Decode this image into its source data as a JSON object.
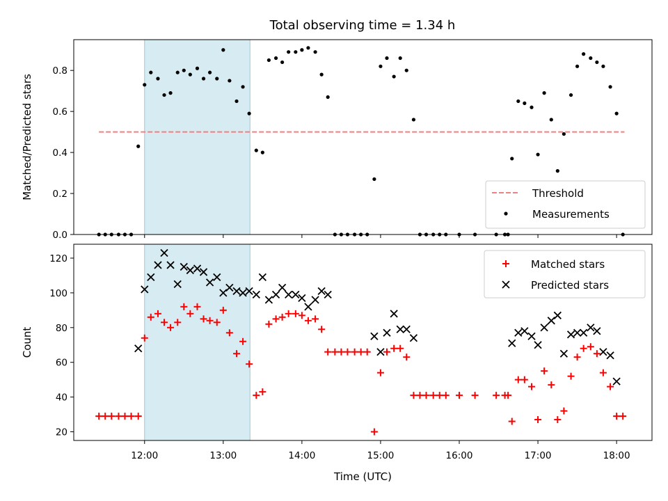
{
  "chart_data": {
    "title": "Total observing time = 1.34 h",
    "xlabel": "Time (UTC)",
    "x_unit": "hours UTC",
    "xlim": [
      11.1,
      18.45
    ],
    "x_ticks": [
      {
        "value": 12,
        "label": "12:00"
      },
      {
        "value": 13,
        "label": "13:00"
      },
      {
        "value": 14,
        "label": "14:00"
      },
      {
        "value": 15,
        "label": "15:00"
      },
      {
        "value": 16,
        "label": "16:00"
      },
      {
        "value": 17,
        "label": "17:00"
      },
      {
        "value": 18,
        "label": "18:00"
      }
    ],
    "shaded_interval": {
      "x0": 12.0,
      "x1": 13.34,
      "color": "#add8e6"
    },
    "panels": [
      {
        "type": "scatter",
        "ylabel": "Matched/Predicted stars",
        "ylim": [
          0,
          0.95
        ],
        "y_ticks": [
          0.0,
          0.2,
          0.4,
          0.6,
          0.8
        ],
        "y_tick_labels": [
          "0.0",
          "0.2",
          "0.4",
          "0.6",
          "0.8"
        ],
        "legend": {
          "placement": "lower-right"
        },
        "series": [
          {
            "name": "Threshold",
            "kind": "line",
            "style": "dashed",
            "color": "#f08080",
            "x": [
              11.42,
              18.1
            ],
            "y": [
              0.5,
              0.5
            ]
          },
          {
            "name": "Measurements",
            "kind": "dot",
            "color": "#000000",
            "x": [
              11.42,
              11.5,
              11.58,
              11.67,
              11.75,
              11.83,
              11.92,
              12.0,
              12.08,
              12.17,
              12.25,
              12.33,
              12.42,
              12.5,
              12.58,
              12.67,
              12.75,
              12.83,
              12.92,
              13.0,
              13.08,
              13.17,
              13.25,
              13.33,
              13.42,
              13.5,
              13.58,
              13.67,
              13.75,
              13.83,
              13.92,
              14.0,
              14.08,
              14.17,
              14.25,
              14.33,
              14.42,
              14.5,
              14.58,
              14.67,
              14.75,
              14.83,
              14.92,
              15.0,
              15.08,
              15.17,
              15.25,
              15.33,
              15.42,
              15.5,
              15.58,
              15.67,
              15.75,
              15.83,
              16.0,
              16.2,
              16.47,
              16.58,
              16.62,
              16.67,
              16.75,
              16.83,
              16.92,
              17.0,
              17.08,
              17.17,
              17.25,
              17.33,
              17.42,
              17.5,
              17.58,
              17.67,
              17.75,
              17.83,
              17.92,
              18.0,
              18.08
            ],
            "y": [
              0,
              0,
              0,
              0,
              0,
              0,
              0.43,
              0.73,
              0.79,
              0.76,
              0.68,
              0.69,
              0.79,
              0.8,
              0.78,
              0.81,
              0.76,
              0.79,
              0.76,
              0.9,
              0.75,
              0.65,
              0.72,
              0.59,
              0.41,
              0.4,
              0.85,
              0.86,
              0.84,
              0.89,
              0.89,
              0.9,
              0.91,
              0.89,
              0.78,
              0.67,
              0,
              0,
              0,
              0,
              0,
              0,
              0.27,
              0.82,
              0.86,
              0.77,
              0.86,
              0.8,
              0.56,
              0,
              0,
              0,
              0,
              0,
              0,
              0,
              0,
              0,
              0,
              0.37,
              0.65,
              0.64,
              0.62,
              0.39,
              0.69,
              0.56,
              0.31,
              0.49,
              0.68,
              0.82,
              0.88,
              0.86,
              0.84,
              0.82,
              0.72,
              0.59,
              0
            ]
          }
        ]
      },
      {
        "type": "scatter",
        "ylabel": "Count",
        "ylim": [
          15,
          128
        ],
        "y_ticks": [
          20,
          40,
          60,
          80,
          100,
          120
        ],
        "y_tick_labels": [
          "20",
          "40",
          "60",
          "80",
          "100",
          "120"
        ],
        "legend": {
          "placement": "top-right"
        },
        "series": [
          {
            "name": "Matched stars",
            "kind": "plus",
            "color": "#ff0000",
            "x": [
              11.42,
              11.5,
              11.58,
              11.67,
              11.75,
              11.83,
              11.92,
              12.0,
              12.08,
              12.17,
              12.25,
              12.33,
              12.42,
              12.5,
              12.58,
              12.67,
              12.75,
              12.83,
              12.92,
              13.0,
              13.08,
              13.17,
              13.25,
              13.33,
              13.42,
              13.5,
              13.58,
              13.67,
              13.75,
              13.83,
              13.92,
              14.0,
              14.08,
              14.17,
              14.25,
              14.33,
              14.42,
              14.5,
              14.58,
              14.67,
              14.75,
              14.83,
              14.92,
              15.0,
              15.08,
              15.17,
              15.25,
              15.33,
              15.42,
              15.5,
              15.58,
              15.67,
              15.75,
              15.83,
              16.0,
              16.2,
              16.47,
              16.58,
              16.62,
              16.67,
              16.75,
              16.83,
              16.92,
              17.0,
              17.08,
              17.17,
              17.25,
              17.33,
              17.42,
              17.5,
              17.58,
              17.67,
              17.75,
              17.83,
              17.92,
              18.0,
              18.08
            ],
            "y": [
              29,
              29,
              29,
              29,
              29,
              29,
              29,
              74,
              86,
              88,
              83,
              80,
              83,
              92,
              88,
              92,
              85,
              84,
              83,
              90,
              77,
              65,
              72,
              59,
              41,
              43,
              82,
              85,
              86,
              88,
              88,
              87,
              84,
              85,
              79,
              66,
              66,
              66,
              66,
              66,
              66,
              66,
              20,
              54,
              66,
              68,
              68,
              63,
              41,
              41,
              41,
              41,
              41,
              41,
              41,
              41,
              41,
              41,
              41,
              26,
              50,
              50,
              46,
              27,
              55,
              47,
              27,
              32,
              52,
              63,
              68,
              69,
              65,
              54,
              46,
              29,
              29
            ]
          },
          {
            "name": "Predicted stars",
            "kind": "x",
            "color": "#000000",
            "x": [
              11.92,
              12.0,
              12.08,
              12.17,
              12.25,
              12.33,
              12.42,
              12.5,
              12.58,
              12.67,
              12.75,
              12.83,
              12.92,
              13.0,
              13.08,
              13.17,
              13.25,
              13.33,
              13.42,
              13.5,
              13.58,
              13.67,
              13.75,
              13.83,
              13.92,
              14.0,
              14.08,
              14.17,
              14.25,
              14.33,
              14.92,
              15.0,
              15.08,
              15.17,
              15.25,
              15.33,
              15.42,
              16.67,
              16.75,
              16.83,
              16.92,
              17.0,
              17.08,
              17.17,
              17.25,
              17.33,
              17.42,
              17.5,
              17.58,
              17.67,
              17.75,
              17.83,
              17.92,
              18.0
            ],
            "y": [
              68,
              102,
              109,
              116,
              123,
              116,
              105,
              115,
              113,
              114,
              112,
              106,
              109,
              100,
              103,
              101,
              100,
              101,
              99,
              109,
              96,
              99,
              103,
              99,
              99,
              97,
              92,
              96,
              101,
              99,
              75,
              66,
              77,
              88,
              79,
              79,
              74,
              71,
              77,
              78,
              75,
              70,
              80,
              84,
              87,
              65,
              76,
              77,
              77,
              80,
              78,
              66,
              64,
              49
            ]
          }
        ]
      }
    ]
  }
}
